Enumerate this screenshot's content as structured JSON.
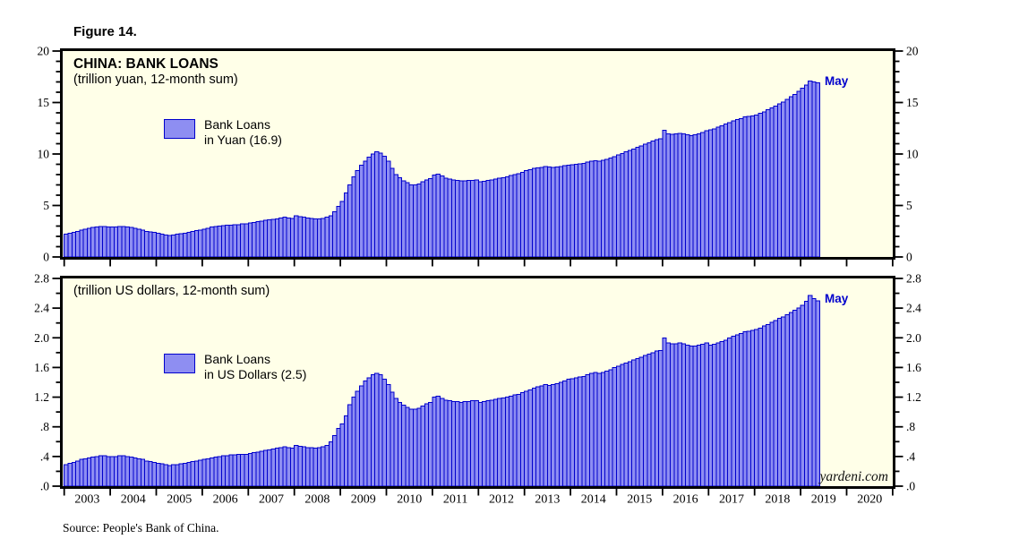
{
  "figure_label": "Figure 14.",
  "source": "Source: People's Bank of China.",
  "watermark": "yardeni.com",
  "colors": {
    "bar_fill": "#8E8EF2",
    "bar_border": "#0000CC",
    "panel_bg": "#FFFFE8",
    "annotation_blue": "#0000CC",
    "axis_black": "#000000"
  },
  "x_years": [
    "2003",
    "2004",
    "2005",
    "2006",
    "2007",
    "2008",
    "2009",
    "2010",
    "2011",
    "2012",
    "2013",
    "2014",
    "2015",
    "2016",
    "2017",
    "2018",
    "2019",
    "2020"
  ],
  "chart_data": [
    {
      "type": "bar",
      "panel": "top",
      "title": "CHINA: BANK LOANS",
      "subtitle": "(trillion yuan, 12-month sum)",
      "legend_line1": "Bank Loans",
      "legend_line2": "in Yuan (16.9)",
      "annotation": "May",
      "latest_value": 16.9,
      "x_monthly_start": "2003-01",
      "x_monthly_end": "2019-05",
      "x_axis_span_years": [
        "2003",
        "2020"
      ],
      "ylim": [
        0,
        20
      ],
      "y_tick_labels": [
        "0",
        "5",
        "10",
        "15",
        "20"
      ],
      "y_major_step": 5,
      "y_minor_step": 1,
      "grid": false,
      "legend_position": "upper-left-inside",
      "values": [
        2.2,
        2.3,
        2.4,
        2.5,
        2.6,
        2.7,
        2.8,
        2.85,
        2.9,
        2.95,
        2.95,
        2.9,
        2.9,
        2.9,
        2.95,
        2.95,
        2.9,
        2.85,
        2.8,
        2.7,
        2.6,
        2.5,
        2.45,
        2.4,
        2.3,
        2.2,
        2.15,
        2.1,
        2.15,
        2.2,
        2.25,
        2.3,
        2.4,
        2.5,
        2.55,
        2.6,
        2.7,
        2.8,
        2.9,
        2.95,
        3.0,
        3.05,
        3.1,
        3.1,
        3.15,
        3.15,
        3.2,
        3.2,
        3.3,
        3.35,
        3.45,
        3.5,
        3.55,
        3.6,
        3.65,
        3.7,
        3.8,
        3.85,
        3.8,
        3.75,
        4.0,
        3.9,
        3.85,
        3.8,
        3.75,
        3.7,
        3.7,
        3.75,
        3.85,
        4.0,
        4.4,
        4.9,
        5.4,
        6.2,
        7.0,
        7.8,
        8.4,
        8.9,
        9.3,
        9.7,
        10.0,
        10.2,
        10.1,
        9.8,
        9.3,
        8.6,
        8.0,
        7.7,
        7.4,
        7.2,
        7.0,
        7.0,
        7.1,
        7.3,
        7.5,
        7.6,
        7.95,
        8.05,
        7.85,
        7.65,
        7.55,
        7.5,
        7.45,
        7.4,
        7.4,
        7.45,
        7.45,
        7.5,
        7.3,
        7.35,
        7.45,
        7.5,
        7.55,
        7.65,
        7.7,
        7.8,
        7.9,
        8.0,
        8.1,
        8.2,
        8.4,
        8.5,
        8.6,
        8.65,
        8.7,
        8.8,
        8.75,
        8.7,
        8.75,
        8.8,
        8.85,
        8.9,
        8.95,
        9.0,
        9.05,
        9.1,
        9.2,
        9.3,
        9.35,
        9.3,
        9.4,
        9.5,
        9.6,
        9.75,
        9.9,
        10.05,
        10.2,
        10.35,
        10.5,
        10.65,
        10.8,
        10.95,
        11.1,
        11.25,
        11.4,
        11.5,
        12.3,
        11.95,
        11.9,
        11.95,
        12.0,
        11.95,
        11.85,
        11.8,
        11.85,
        11.95,
        12.1,
        12.25,
        12.35,
        12.45,
        12.6,
        12.75,
        12.9,
        13.05,
        13.2,
        13.35,
        13.45,
        13.6,
        13.65,
        13.7,
        13.8,
        13.95,
        14.1,
        14.3,
        14.5,
        14.65,
        14.85,
        15.05,
        15.3,
        15.55,
        15.8,
        16.1,
        16.4,
        16.7,
        17.1,
        17.0,
        16.9
      ]
    },
    {
      "type": "bar",
      "panel": "bottom",
      "title": "",
      "subtitle": "(trillion US dollars, 12-month sum)",
      "legend_line1": "Bank Loans",
      "legend_line2": "in US Dollars (2.5)",
      "annotation": "May",
      "latest_value": 2.5,
      "x_monthly_start": "2003-01",
      "x_monthly_end": "2019-05",
      "x_axis_span_years": [
        "2003",
        "2020"
      ],
      "ylim": [
        0,
        2.8
      ],
      "y_tick_labels": [
        ".0",
        ".4",
        ".8",
        "1.2",
        "1.6",
        "2.0",
        "2.4",
        "2.8"
      ],
      "y_major_step": 0.4,
      "y_minor_step": 0.2,
      "grid": false,
      "legend_position": "upper-left-inside",
      "values": [
        0.29,
        0.31,
        0.32,
        0.34,
        0.36,
        0.37,
        0.38,
        0.39,
        0.4,
        0.41,
        0.41,
        0.4,
        0.4,
        0.4,
        0.41,
        0.41,
        0.4,
        0.39,
        0.38,
        0.37,
        0.36,
        0.34,
        0.33,
        0.32,
        0.31,
        0.3,
        0.29,
        0.28,
        0.29,
        0.29,
        0.3,
        0.31,
        0.32,
        0.33,
        0.34,
        0.35,
        0.36,
        0.37,
        0.38,
        0.39,
        0.4,
        0.41,
        0.41,
        0.42,
        0.42,
        0.43,
        0.43,
        0.43,
        0.44,
        0.45,
        0.46,
        0.47,
        0.48,
        0.49,
        0.5,
        0.51,
        0.52,
        0.53,
        0.52,
        0.51,
        0.55,
        0.54,
        0.53,
        0.52,
        0.52,
        0.51,
        0.52,
        0.53,
        0.55,
        0.6,
        0.68,
        0.78,
        0.84,
        0.95,
        1.1,
        1.2,
        1.28,
        1.35,
        1.42,
        1.46,
        1.5,
        1.52,
        1.5,
        1.44,
        1.37,
        1.27,
        1.18,
        1.13,
        1.09,
        1.06,
        1.04,
        1.04,
        1.05,
        1.08,
        1.11,
        1.13,
        1.2,
        1.21,
        1.18,
        1.16,
        1.15,
        1.14,
        1.14,
        1.13,
        1.14,
        1.14,
        1.15,
        1.15,
        1.13,
        1.14,
        1.15,
        1.16,
        1.17,
        1.18,
        1.19,
        1.2,
        1.21,
        1.23,
        1.24,
        1.26,
        1.28,
        1.3,
        1.32,
        1.34,
        1.35,
        1.37,
        1.36,
        1.37,
        1.38,
        1.4,
        1.42,
        1.44,
        1.45,
        1.46,
        1.47,
        1.48,
        1.5,
        1.52,
        1.53,
        1.52,
        1.53,
        1.55,
        1.57,
        1.6,
        1.62,
        1.64,
        1.66,
        1.68,
        1.7,
        1.72,
        1.74,
        1.76,
        1.78,
        1.8,
        1.82,
        1.83,
        2.0,
        1.93,
        1.92,
        1.92,
        1.93,
        1.92,
        1.9,
        1.89,
        1.89,
        1.9,
        1.91,
        1.93,
        1.9,
        1.91,
        1.93,
        1.95,
        1.97,
        2.0,
        2.02,
        2.04,
        2.06,
        2.08,
        2.09,
        2.1,
        2.11,
        2.13,
        2.16,
        2.18,
        2.21,
        2.23,
        2.26,
        2.28,
        2.31,
        2.34,
        2.37,
        2.4,
        2.44,
        2.49,
        2.57,
        2.53,
        2.5
      ]
    }
  ]
}
